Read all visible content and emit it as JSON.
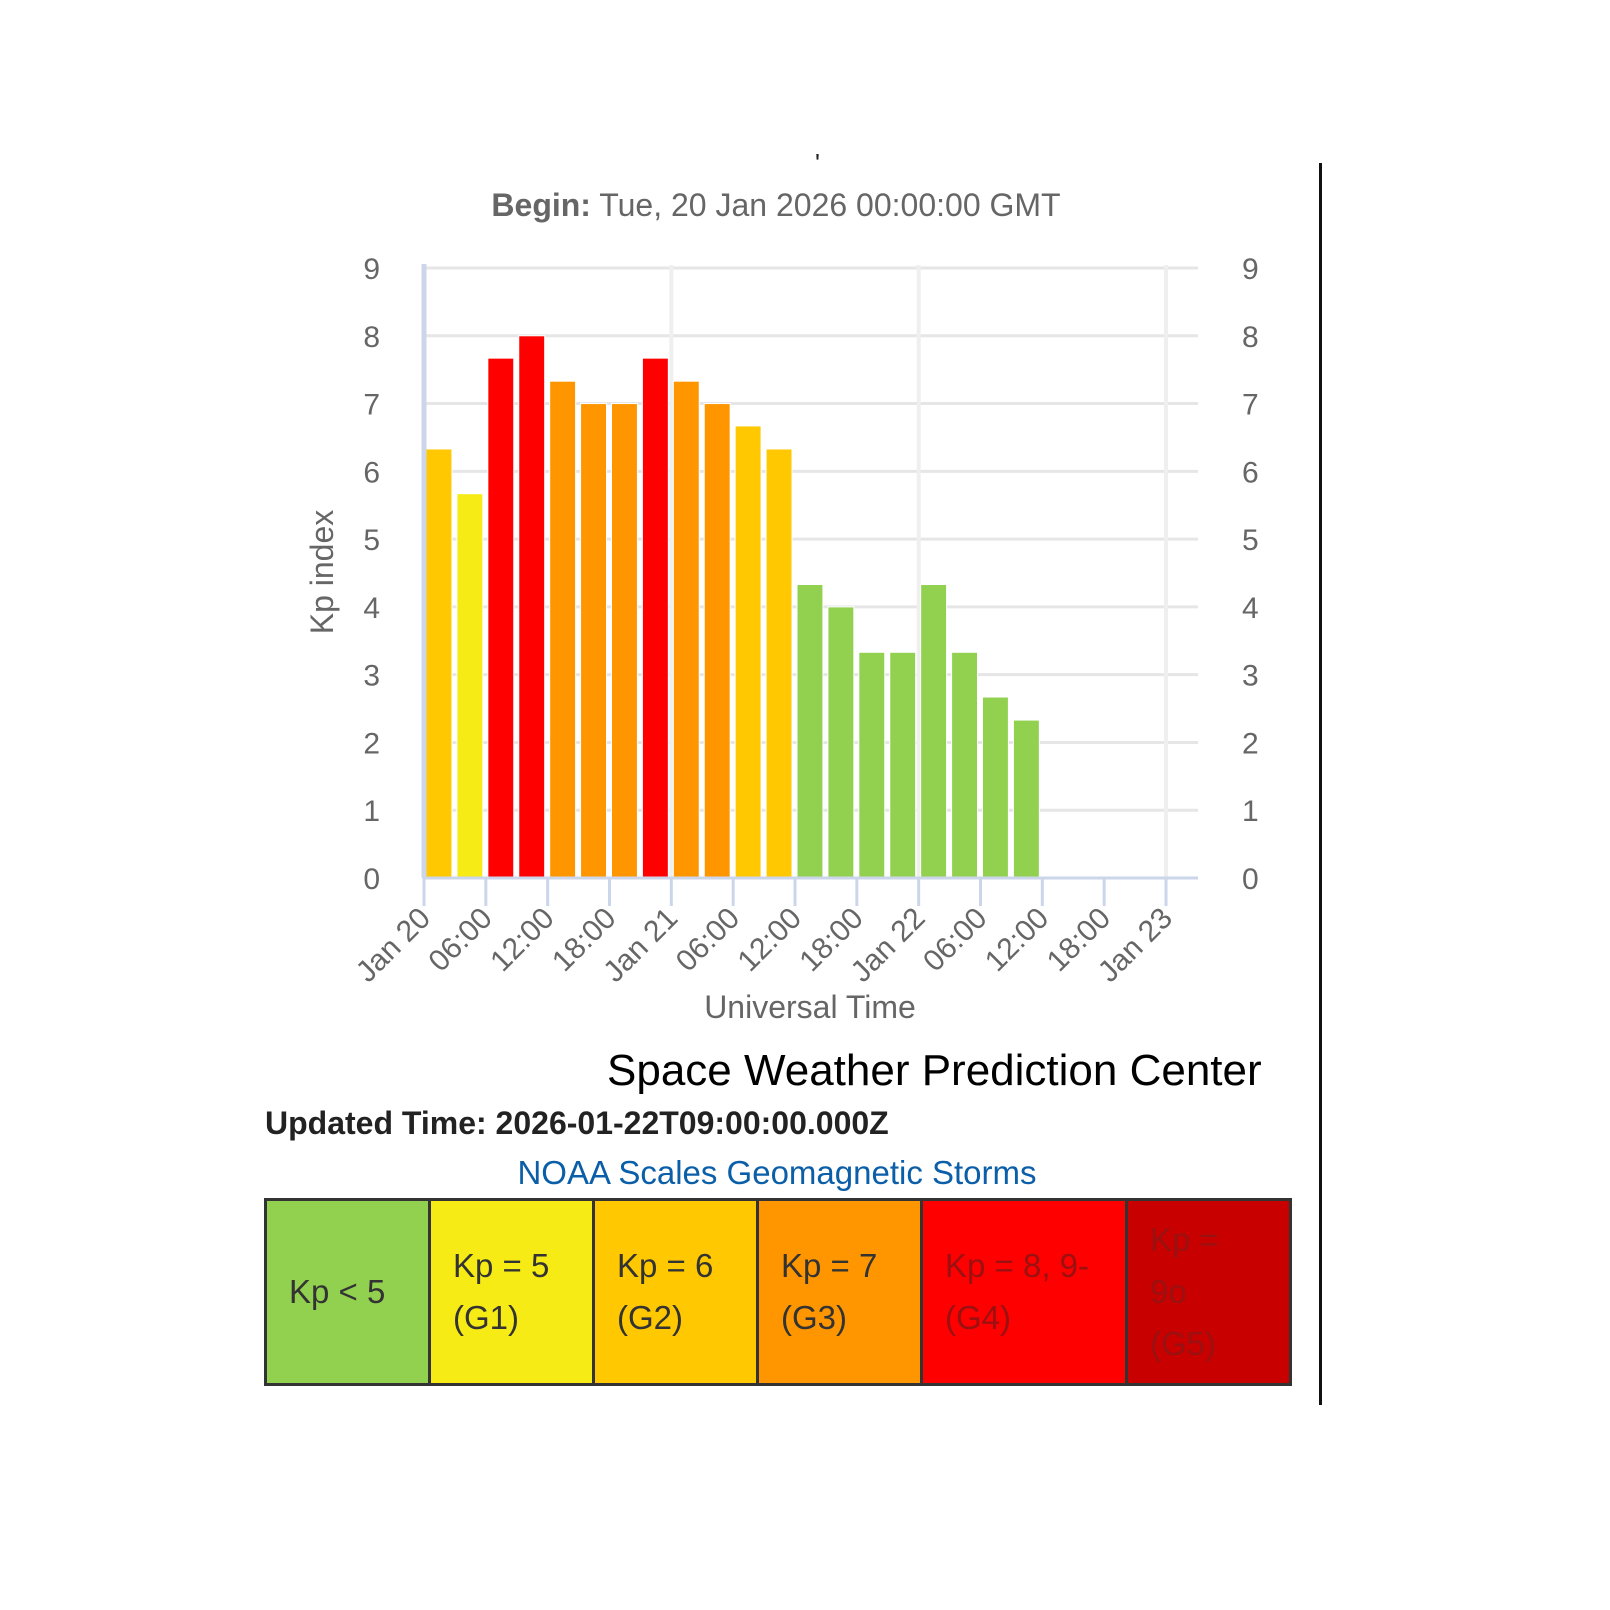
{
  "header": {
    "partial_title": "'",
    "begin_label": "Begin:",
    "begin_value": "Tue, 20 Jan 2026 00:00:00 GMT"
  },
  "chart_data": {
    "type": "bar",
    "ylabel": "Kp index",
    "xlabel": "Universal Time",
    "ylim": [
      0,
      9
    ],
    "yticks": [
      "0",
      "1",
      "2",
      "3",
      "4",
      "5",
      "6",
      "7",
      "8",
      "9"
    ],
    "xticks": [
      "Jan 20",
      "06:00",
      "12:00",
      "18:00",
      "Jan 21",
      "06:00",
      "12:00",
      "18:00",
      "Jan 22",
      "06:00",
      "12:00",
      "18:00",
      "Jan 23"
    ],
    "interval_hours": 3,
    "x": [
      "2026-01-20 00:00",
      "2026-01-20 03:00",
      "2026-01-20 06:00",
      "2026-01-20 09:00",
      "2026-01-20 12:00",
      "2026-01-20 15:00",
      "2026-01-20 18:00",
      "2026-01-20 21:00",
      "2026-01-21 00:00",
      "2026-01-21 03:00",
      "2026-01-21 06:00",
      "2026-01-21 09:00",
      "2026-01-21 12:00",
      "2026-01-21 15:00",
      "2026-01-21 18:00",
      "2026-01-21 21:00",
      "2026-01-22 00:00",
      "2026-01-22 03:00",
      "2026-01-22 06:00",
      "2026-01-22 09:00"
    ],
    "values": [
      6.33,
      5.67,
      7.67,
      8.0,
      7.33,
      7.0,
      7.0,
      7.67,
      7.33,
      7.0,
      6.67,
      6.33,
      4.33,
      4.0,
      3.33,
      3.33,
      4.33,
      3.33,
      2.67,
      2.33
    ],
    "grid": true,
    "dual_y_axis": true,
    "color_rule": {
      "below_5": "#92d050",
      "5": "#f6eb14",
      "6": "#ffc800",
      "7": "#ff9600",
      "8_9-": "#ff0000",
      "9o": "#c80000"
    }
  },
  "footer": {
    "org": "Space Weather Prediction Center",
    "updated": "Updated Time: 2026-01-22T09:00:00.000Z",
    "scale_link": "NOAA Scales Geomagnetic Storms"
  },
  "scale": [
    {
      "label": "Kp < 5",
      "color": "#92d050"
    },
    {
      "label": "Kp = 5 (G1)",
      "color": "#f6eb14"
    },
    {
      "label": "Kp = 6 (G2)",
      "color": "#ffc800"
    },
    {
      "label": "Kp = 7 (G3)",
      "color": "#ff9600"
    },
    {
      "label": "Kp = 8, 9- (G4)",
      "color": "#ff0000"
    },
    {
      "label": "Kp = 9o (G5)",
      "color": "#c80000"
    }
  ]
}
